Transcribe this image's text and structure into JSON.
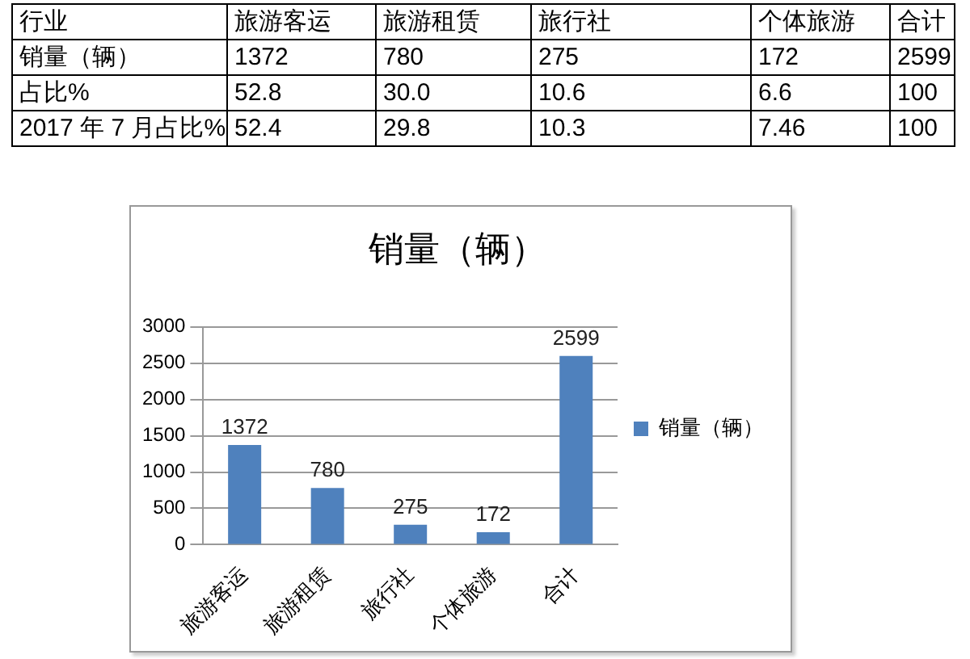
{
  "chart_data": [
    {
      "type": "heatmap",
      "xlabel": "行业",
      "categories": [
        "旅游客运",
        "旅游租赁",
        "旅行社",
        "个体旅游",
        "合计"
      ],
      "y_categories": [
        "销量（辆）",
        "占比%",
        "2017 年 7 月占比%"
      ],
      "cells": [
        [
          1372,
          780,
          275,
          172,
          2599
        ],
        [
          52.8,
          30.0,
          10.6,
          6.6,
          100
        ],
        [
          52.4,
          29.8,
          10.3,
          7.46,
          100
        ]
      ],
      "cell_labels": [
        [
          "1372",
          "780",
          "275",
          "172",
          "2599"
        ],
        [
          "52.8",
          "30.0",
          "10.6",
          "6.6",
          "100"
        ],
        [
          "52.4",
          "29.8",
          "10.3",
          "7.46",
          "100"
        ]
      ]
    },
    {
      "type": "bar",
      "title": "销量（辆）",
      "categories": [
        "旅游客运",
        "旅游租赁",
        "旅行社",
        "个体旅游",
        "合计"
      ],
      "series": [
        {
          "name": "销量（辆）",
          "color": "#4f81bd",
          "values": [
            1372,
            780,
            275,
            172,
            2599
          ]
        }
      ],
      "ylim": [
        0,
        3000
      ],
      "yticks": [
        0,
        500,
        1000,
        1500,
        2000,
        2500,
        3000
      ],
      "grid": "y",
      "legend": "right",
      "data_labels": true
    }
  ]
}
